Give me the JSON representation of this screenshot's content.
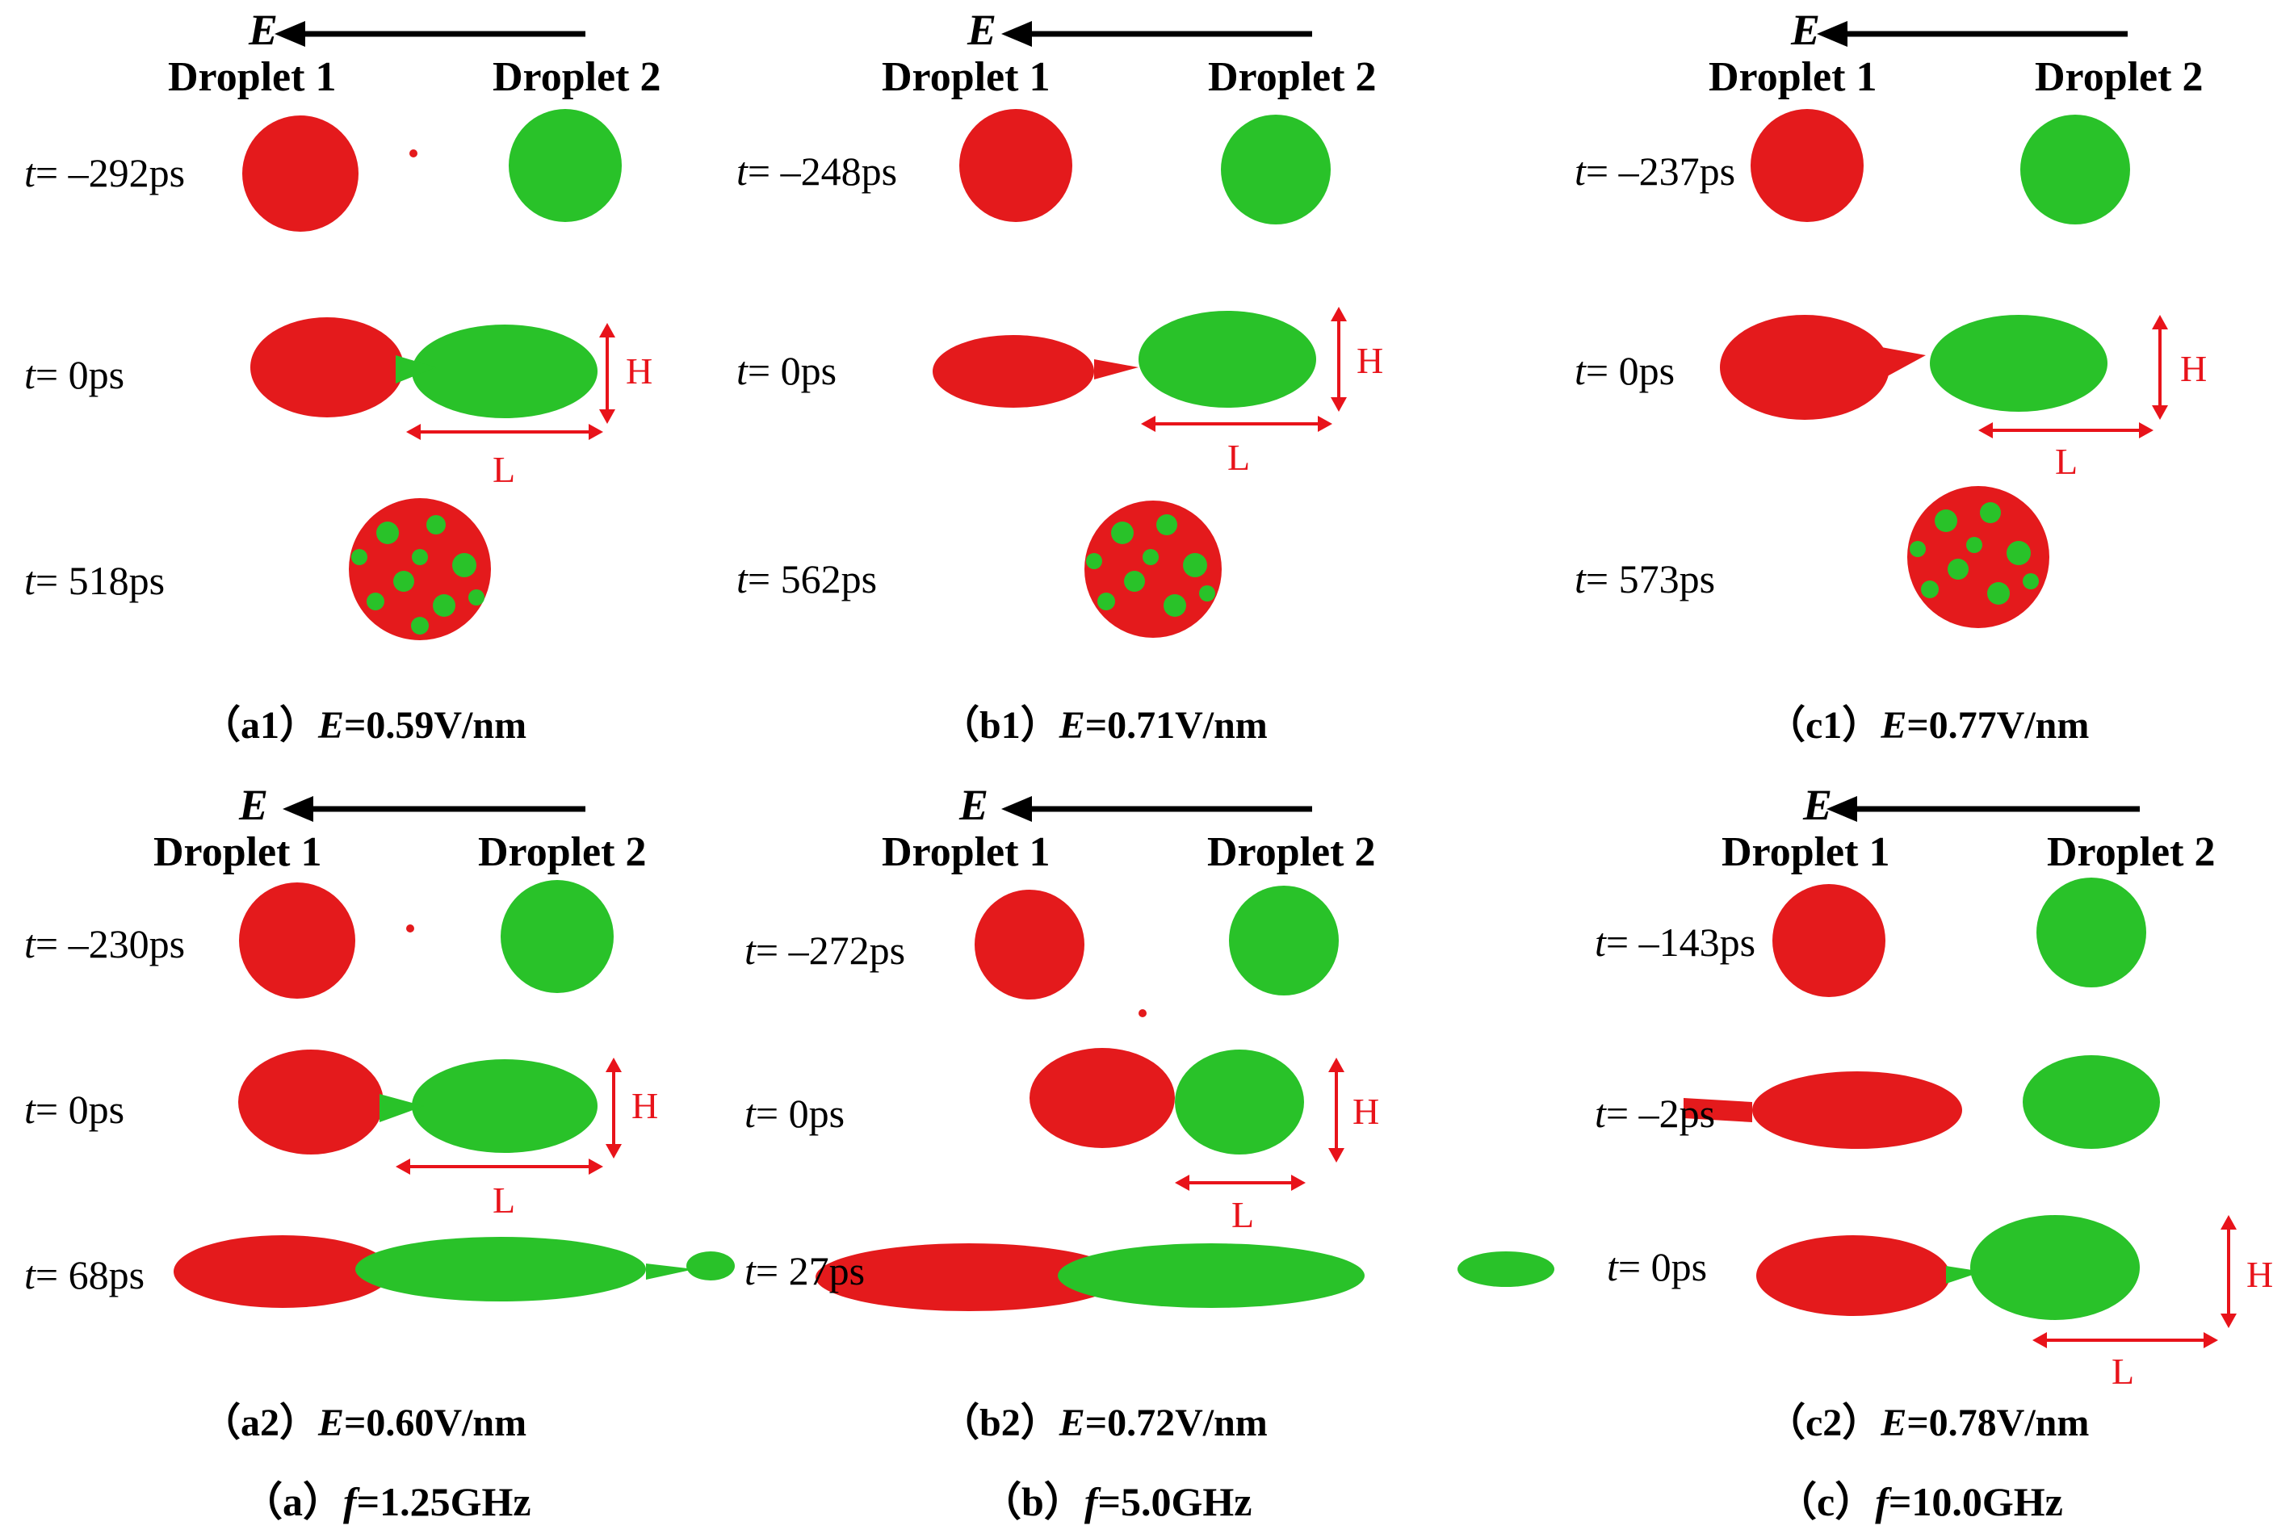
{
  "field_symbol": "E",
  "droplet_labels": [
    "Droplet 1",
    "Droplet 2"
  ],
  "colors": {
    "droplet1": "#e41a1c",
    "droplet2": "#29c229",
    "annotation": "#e8131a",
    "arrow": "#000000"
  },
  "dimension_labels": {
    "height": "H",
    "length": "L"
  },
  "panels": [
    {
      "id": "a1",
      "caption_prefix": "（a1）",
      "caption_field": "E",
      "caption_value": "=0.59V/nm",
      "rows": [
        {
          "t_label": "t",
          "t_value": "= –292ps"
        },
        {
          "t_label": "t",
          "t_value": "= 0ps"
        },
        {
          "t_label": "t",
          "t_value": "= 518ps"
        }
      ]
    },
    {
      "id": "b1",
      "caption_prefix": "（b1）",
      "caption_field": "E",
      "caption_value": "=0.71V/nm",
      "rows": [
        {
          "t_label": "t",
          "t_value": "= –248ps"
        },
        {
          "t_label": "t",
          "t_value": "= 0ps"
        },
        {
          "t_label": "t",
          "t_value": "= 562ps"
        }
      ]
    },
    {
      "id": "c1",
      "caption_prefix": "（c1）",
      "caption_field": "E",
      "caption_value": "=0.77V/nm",
      "rows": [
        {
          "t_label": "t",
          "t_value": "= –237ps"
        },
        {
          "t_label": "t",
          "t_value": "= 0ps"
        },
        {
          "t_label": "t",
          "t_value": "= 573ps"
        }
      ]
    },
    {
      "id": "a2",
      "caption_prefix": "（a2）",
      "caption_field": "E",
      "caption_value": "=0.60V/nm",
      "rows": [
        {
          "t_label": "t",
          "t_value": "= –230ps"
        },
        {
          "t_label": "t",
          "t_value": "= 0ps"
        },
        {
          "t_label": "t",
          "t_value": "= 68ps"
        }
      ]
    },
    {
      "id": "b2",
      "caption_prefix": "（b2）",
      "caption_field": "E",
      "caption_value": "=0.72V/nm",
      "rows": [
        {
          "t_label": "t",
          "t_value": "= –272ps"
        },
        {
          "t_label": "t",
          "t_value": "= 0ps"
        },
        {
          "t_label": "t",
          "t_value": "= 27ps"
        }
      ]
    },
    {
      "id": "c2",
      "caption_prefix": "（c2）",
      "caption_field": "E",
      "caption_value": "=0.78V/nm",
      "rows": [
        {
          "t_label": "t",
          "t_value": "= –143ps"
        },
        {
          "t_label": "t",
          "t_value": "= –2ps"
        },
        {
          "t_label": "t",
          "t_value": "= 0ps"
        }
      ]
    }
  ],
  "column_captions": [
    {
      "prefix": "（a）",
      "symbol": "f",
      "value": "=1.25GHz"
    },
    {
      "prefix": "（b）",
      "symbol": "f",
      "value": "=5.0GHz"
    },
    {
      "prefix": "（c）",
      "symbol": "f",
      "value": "=10.0GHz"
    }
  ]
}
